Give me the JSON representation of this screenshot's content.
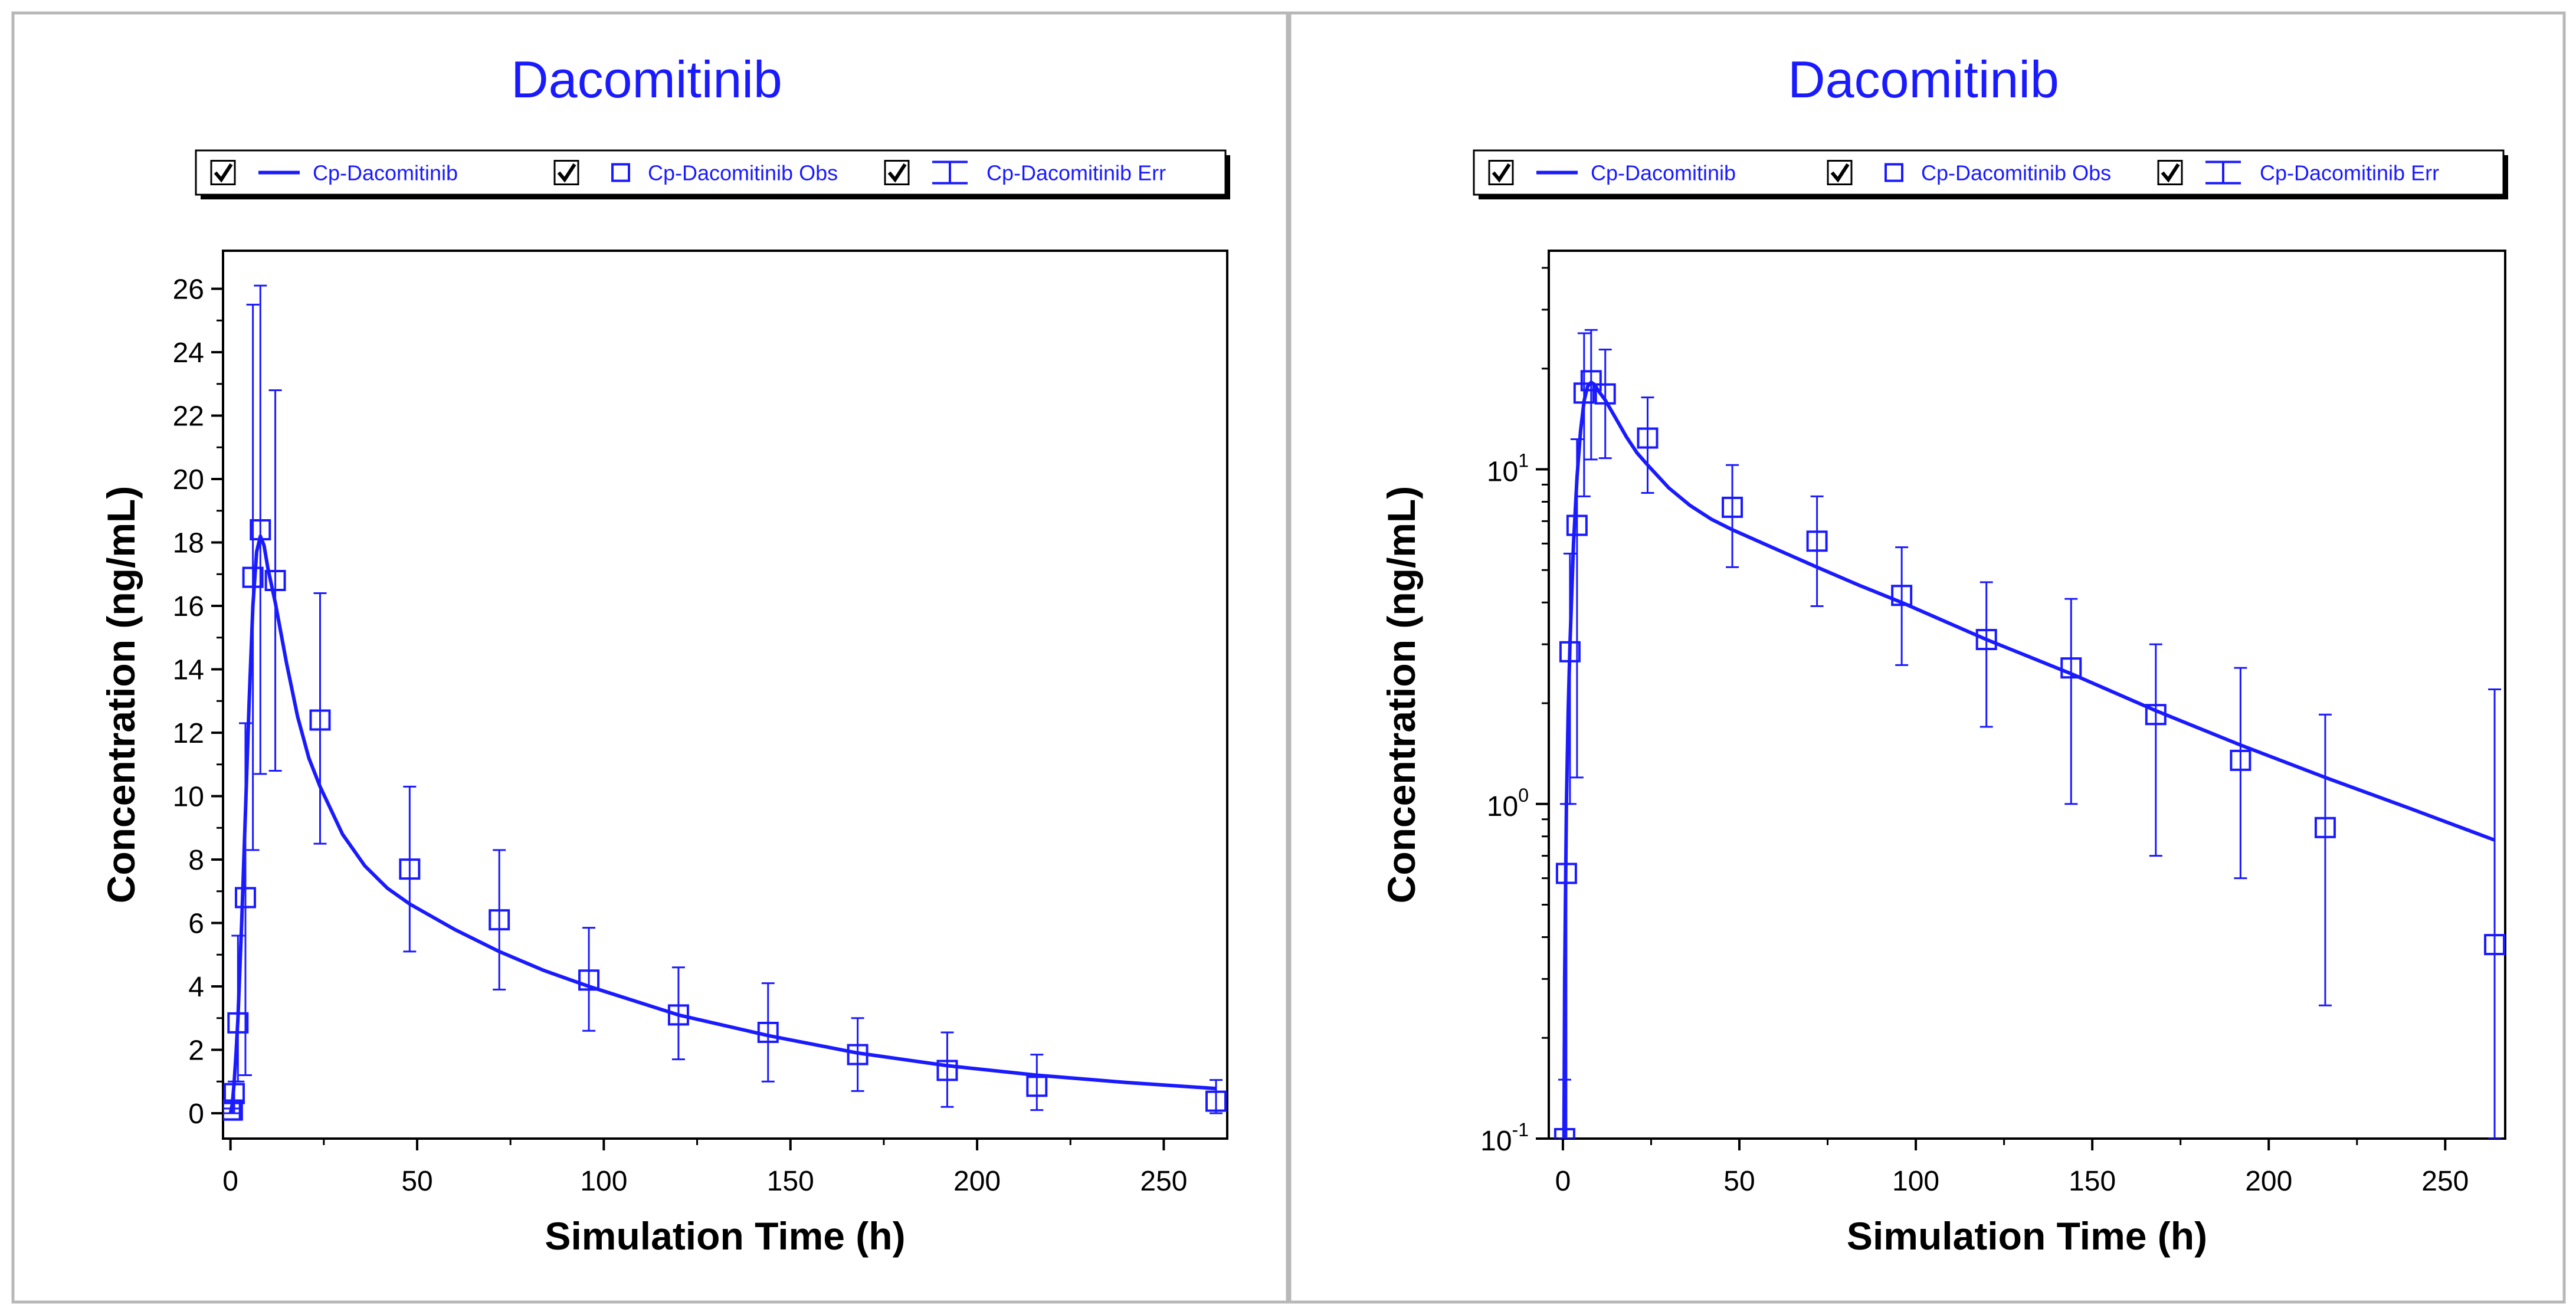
{
  "chart_data": [
    {
      "type": "line",
      "title": "Dacomitinib",
      "xlabel": "Simulation Time (h)",
      "ylabel": "Concentration (ng/mL)",
      "yscale": "linear",
      "xlim": [
        -2,
        267
      ],
      "ylim": [
        -0.8,
        27.2
      ],
      "x_ticks": [
        0,
        50,
        100,
        150,
        200,
        250
      ],
      "x_tick_labels": [
        "0",
        "50",
        "100",
        "150",
        "200",
        "250"
      ],
      "y_ticks": [
        0,
        2,
        4,
        6,
        8,
        10,
        12,
        14,
        16,
        18,
        20,
        22,
        24,
        26
      ],
      "y_tick_labels": [
        "0",
        "2",
        "4",
        "6",
        "8",
        "10",
        "12",
        "14",
        "16",
        "18",
        "20",
        "22",
        "24",
        "26"
      ],
      "legend": {
        "placement": "top",
        "entries": [
          {
            "label": "Cp-Dacomitinib",
            "checked": true,
            "symbol": "line"
          },
          {
            "label": "Cp-Dacomitinib Obs",
            "checked": true,
            "symbol": "square"
          },
          {
            "label": "Cp-Dacomitinib Err",
            "checked": true,
            "symbol": "errorbar"
          }
        ]
      },
      "series": [
        {
          "name": "Cp-Dacomitinib",
          "kind": "line",
          "x": [
            0,
            0.5,
            1,
            1.5,
            2,
            3,
            4,
            5,
            6,
            7,
            8,
            9,
            10,
            12,
            15,
            18,
            21,
            24,
            30,
            36,
            42,
            48,
            60,
            72,
            84,
            96,
            120,
            144,
            168,
            192,
            216,
            240,
            264
          ],
          "y": [
            0,
            0.3,
            1.0,
            1.9,
            3.0,
            6.0,
            9.5,
            13.0,
            16.0,
            17.7,
            18.2,
            17.9,
            17.2,
            16.1,
            14.2,
            12.5,
            11.2,
            10.3,
            8.8,
            7.8,
            7.1,
            6.6,
            5.8,
            5.1,
            4.5,
            4.0,
            3.1,
            2.45,
            1.9,
            1.5,
            1.2,
            0.97,
            0.78
          ]
        },
        {
          "name": "Cp-Dacomitinib Obs",
          "kind": "scatter",
          "marker": "square",
          "x": [
            0,
            0.5,
            1,
            2,
            4,
            6,
            8,
            12,
            24,
            48,
            72,
            96,
            120,
            144,
            168,
            192,
            216,
            264
          ],
          "y": [
            0.1,
            0.1,
            0.62,
            2.85,
            6.8,
            16.9,
            18.4,
            16.8,
            12.4,
            7.7,
            6.1,
            4.2,
            3.1,
            2.55,
            1.85,
            1.35,
            0.85,
            0.38
          ]
        },
        {
          "name": "Cp-Dacomitinib Err",
          "kind": "errorbar",
          "x": [
            0,
            0.5,
            1,
            2,
            4,
            6,
            8,
            12,
            24,
            48,
            72,
            96,
            120,
            144,
            168,
            192,
            216,
            264
          ],
          "lower": [
            0.0,
            0.0,
            0.0,
            1.0,
            1.2,
            8.3,
            10.7,
            10.8,
            8.5,
            5.1,
            3.9,
            2.6,
            1.7,
            1.0,
            0.7,
            0.2,
            0.1,
            0.0
          ],
          "upper": [
            0.15,
            0.15,
            1.0,
            5.6,
            12.3,
            25.5,
            26.1,
            22.8,
            16.4,
            10.3,
            8.3,
            5.85,
            4.6,
            4.1,
            3.0,
            2.55,
            1.85,
            1.05
          ]
        }
      ]
    },
    {
      "type": "line",
      "title": "Dacomitinib",
      "xlabel": "Simulation Time (h)",
      "ylabel": "Concentration (ng/mL)",
      "yscale": "log",
      "xlim": [
        -4,
        267
      ],
      "ylim": [
        0.1,
        45
      ],
      "x_ticks": [
        0,
        50,
        100,
        150,
        200,
        250
      ],
      "x_tick_labels": [
        "0",
        "50",
        "100",
        "150",
        "200",
        "250"
      ],
      "y_major_ticks": [
        0.1,
        1,
        10
      ],
      "y_tick_labels": [
        {
          "base": "10",
          "exp": "-1"
        },
        {
          "base": "10",
          "exp": "0"
        },
        {
          "base": "10",
          "exp": "1"
        }
      ],
      "legend": {
        "placement": "top",
        "entries": [
          {
            "label": "Cp-Dacomitinib",
            "checked": true,
            "symbol": "line"
          },
          {
            "label": "Cp-Dacomitinib Obs",
            "checked": true,
            "symbol": "square"
          },
          {
            "label": "Cp-Dacomitinib Err",
            "checked": true,
            "symbol": "errorbar"
          }
        ]
      },
      "series": [
        {
          "name": "Cp-Dacomitinib",
          "kind": "line",
          "x": [
            0.3,
            0.5,
            1,
            1.5,
            2,
            3,
            4,
            5,
            6,
            7,
            8,
            9,
            10,
            12,
            15,
            18,
            21,
            24,
            30,
            36,
            42,
            48,
            60,
            72,
            84,
            96,
            120,
            144,
            168,
            192,
            216,
            240,
            264
          ],
          "y": [
            0.1,
            0.3,
            1.0,
            1.9,
            3.0,
            6.0,
            9.5,
            13.0,
            16.0,
            17.7,
            18.2,
            17.9,
            17.2,
            16.1,
            14.2,
            12.5,
            11.2,
            10.3,
            8.8,
            7.8,
            7.1,
            6.6,
            5.8,
            5.1,
            4.5,
            4.0,
            3.1,
            2.45,
            1.9,
            1.5,
            1.2,
            0.97,
            0.78
          ]
        },
        {
          "name": "Cp-Dacomitinib Obs",
          "kind": "scatter",
          "marker": "square",
          "x": [
            0.5,
            1,
            2,
            4,
            6,
            8,
            12,
            24,
            48,
            72,
            96,
            120,
            144,
            168,
            192,
            216,
            264
          ],
          "y": [
            0.1,
            0.62,
            2.85,
            6.8,
            16.9,
            18.4,
            16.8,
            12.4,
            7.7,
            6.1,
            4.2,
            3.1,
            2.55,
            1.85,
            1.35,
            0.85,
            0.38
          ]
        },
        {
          "name": "Cp-Dacomitinib Err",
          "kind": "errorbar",
          "x": [
            0.5,
            1,
            2,
            4,
            6,
            8,
            12,
            24,
            48,
            72,
            96,
            120,
            144,
            168,
            192,
            216,
            264
          ],
          "lower": [
            0.1,
            0.1,
            1.0,
            1.2,
            8.3,
            10.7,
            10.8,
            8.5,
            5.1,
            3.9,
            2.6,
            1.7,
            1.0,
            0.7,
            0.6,
            0.25,
            0.1
          ],
          "upper": [
            0.15,
            1.0,
            5.6,
            12.3,
            25.5,
            26.1,
            22.8,
            16.4,
            10.3,
            8.3,
            5.85,
            4.6,
            4.1,
            3.0,
            2.55,
            1.85,
            2.2
          ]
        }
      ]
    }
  ],
  "colors": {
    "series": "#1a1aff",
    "title": "#1a1aff",
    "axis": "#000000",
    "frame": "#b8b8b8"
  }
}
